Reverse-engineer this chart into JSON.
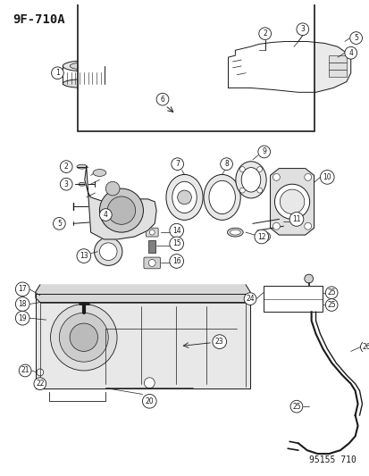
{
  "title": "9F-710A",
  "footer": "95155 710",
  "bg_color": "#ffffff",
  "line_color": "#1a1a1a",
  "figsize": [
    4.14,
    5.33
  ],
  "dpi": 100,
  "title_fontsize": 10,
  "footer_fontsize": 7,
  "label_fontsize": 5.5,
  "circle_r": 0.016
}
